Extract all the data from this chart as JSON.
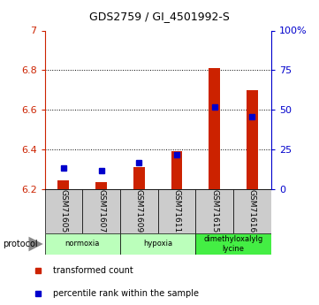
{
  "title": "GDS2759 / GI_4501992-S",
  "samples": [
    "GSM71605",
    "GSM71607",
    "GSM71609",
    "GSM71611",
    "GSM71615",
    "GSM71616"
  ],
  "red_values": [
    6.245,
    6.235,
    6.31,
    6.39,
    6.81,
    6.7
  ],
  "blue_values": [
    6.305,
    6.295,
    6.335,
    6.375,
    6.615,
    6.565
  ],
  "y_min": 6.2,
  "y_max": 7.0,
  "y_ticks_left": [
    6.2,
    6.4,
    6.6,
    6.8,
    7.0
  ],
  "y_tick_labels_left": [
    "6.2",
    "6.4",
    "6.6",
    "6.8",
    "7"
  ],
  "y_ticks_right": [
    0,
    25,
    50,
    75,
    100
  ],
  "right_labels": [
    "0",
    "25",
    "50",
    "75",
    "100%"
  ],
  "grid_lines": [
    6.4,
    6.6,
    6.8
  ],
  "bar_color": "#cc2200",
  "square_color": "#0000cc",
  "legend_red": "transformed count",
  "legend_blue": "percentile rank within the sample",
  "protocol_label": "protocol",
  "tick_color_left": "#cc2200",
  "tick_color_right": "#0000cc",
  "bar_bottom": 6.2,
  "bar_width": 0.3,
  "protocol_groups": [
    {
      "label": "normoxia",
      "start": 0,
      "end": 1,
      "color": "#bbffbb"
    },
    {
      "label": "hypoxia",
      "start": 2,
      "end": 3,
      "color": "#bbffbb"
    },
    {
      "label": "dimethyloxalylg\nlycine",
      "start": 4,
      "end": 5,
      "color": "#44ee44"
    }
  ]
}
